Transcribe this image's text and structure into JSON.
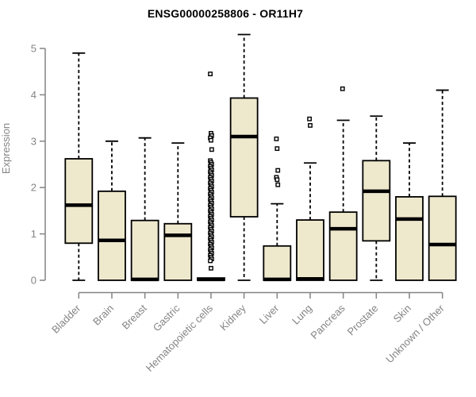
{
  "chart_data": {
    "type": "boxplot",
    "title": "ENSG00000258806 - OR11H7",
    "ylabel": "Expression",
    "xlabel": "",
    "ylim": [
      0,
      5.4
    ],
    "yticks": [
      0,
      1,
      2,
      3,
      4,
      5
    ],
    "grid": false,
    "legend": "none",
    "categories": [
      "Bladder",
      "Brain",
      "Breast",
      "Gastric",
      "Hematopoietic cells",
      "Kidney",
      "Liver",
      "Lung",
      "Pancreas",
      "Prostate",
      "Skin",
      "Unknown / Other"
    ],
    "series": [
      {
        "name": "Bladder",
        "whisker_low": 0,
        "q1": 0.8,
        "median": 1.62,
        "q3": 2.62,
        "whisker_high": 4.9,
        "outliers": []
      },
      {
        "name": "Brain",
        "whisker_low": 0,
        "q1": 0.0,
        "median": 0.86,
        "q3": 1.92,
        "whisker_high": 3.0,
        "outliers": []
      },
      {
        "name": "Breast",
        "whisker_low": 0,
        "q1": 0.0,
        "median": 0.02,
        "q3": 1.29,
        "whisker_high": 3.07,
        "outliers": []
      },
      {
        "name": "Gastric",
        "whisker_low": 0,
        "q1": 0.0,
        "median": 0.97,
        "q3": 1.22,
        "whisker_high": 2.96,
        "outliers": []
      },
      {
        "name": "Hematopoietic cells",
        "whisker_low": 0,
        "q1": 0.0,
        "median": 0.02,
        "q3": 0.05,
        "whisker_high": 0.05,
        "outliers": [
          4.45,
          3.17,
          3.12,
          3.07,
          3.02,
          2.82,
          2.58,
          2.54,
          2.5,
          2.46,
          2.42,
          2.38,
          2.34,
          2.3,
          2.26,
          2.22,
          2.18,
          2.14,
          2.1,
          2.06,
          2.02,
          1.98,
          1.94,
          1.9,
          1.86,
          1.82,
          1.78,
          1.74,
          1.7,
          1.66,
          1.62,
          1.58,
          1.54,
          1.5,
          1.46,
          1.42,
          1.38,
          1.34,
          1.3,
          1.26,
          1.22,
          1.18,
          1.14,
          1.1,
          1.06,
          1.02,
          0.98,
          0.94,
          0.9,
          0.86,
          0.82,
          0.78,
          0.74,
          0.7,
          0.66,
          0.62,
          0.58,
          0.54,
          0.5,
          0.46,
          0.42,
          0.26
        ]
      },
      {
        "name": "Kidney",
        "whisker_low": 0,
        "q1": 1.37,
        "median": 3.1,
        "q3": 3.93,
        "whisker_high": 5.3,
        "outliers": []
      },
      {
        "name": "Liver",
        "whisker_low": 0,
        "q1": 0.0,
        "median": 0.02,
        "q3": 0.74,
        "whisker_high": 1.65,
        "outliers": [
          3.05,
          2.84,
          2.37,
          2.22,
          2.17,
          2.06
        ]
      },
      {
        "name": "Lung",
        "whisker_low": 0,
        "q1": 0.0,
        "median": 0.03,
        "q3": 1.3,
        "whisker_high": 2.53,
        "outliers": [
          3.48,
          3.34
        ]
      },
      {
        "name": "Pancreas",
        "whisker_low": 0,
        "q1": 0.0,
        "median": 1.11,
        "q3": 1.47,
        "whisker_high": 3.45,
        "outliers": [
          4.13
        ]
      },
      {
        "name": "Prostate",
        "whisker_low": 0,
        "q1": 0.85,
        "median": 1.92,
        "q3": 2.58,
        "whisker_high": 3.54,
        "outliers": []
      },
      {
        "name": "Skin",
        "whisker_low": 0,
        "q1": 0.0,
        "median": 1.32,
        "q3": 1.8,
        "whisker_high": 2.96,
        "outliers": []
      },
      {
        "name": "Unknown / Other",
        "whisker_low": 0,
        "q1": 0.0,
        "median": 0.77,
        "q3": 1.81,
        "whisker_high": 4.1,
        "outliers": []
      }
    ],
    "colors": {
      "box_fill": "#EEE8CD",
      "box_border": "#000000",
      "median": "#000000",
      "whisker": "#000000",
      "outlier_stroke": "#000000",
      "outlier_fill": "#FFFFFF",
      "axis": "#848484",
      "tick_label": "#848484",
      "title": "#000000",
      "background": "#FFFFFF"
    }
  }
}
